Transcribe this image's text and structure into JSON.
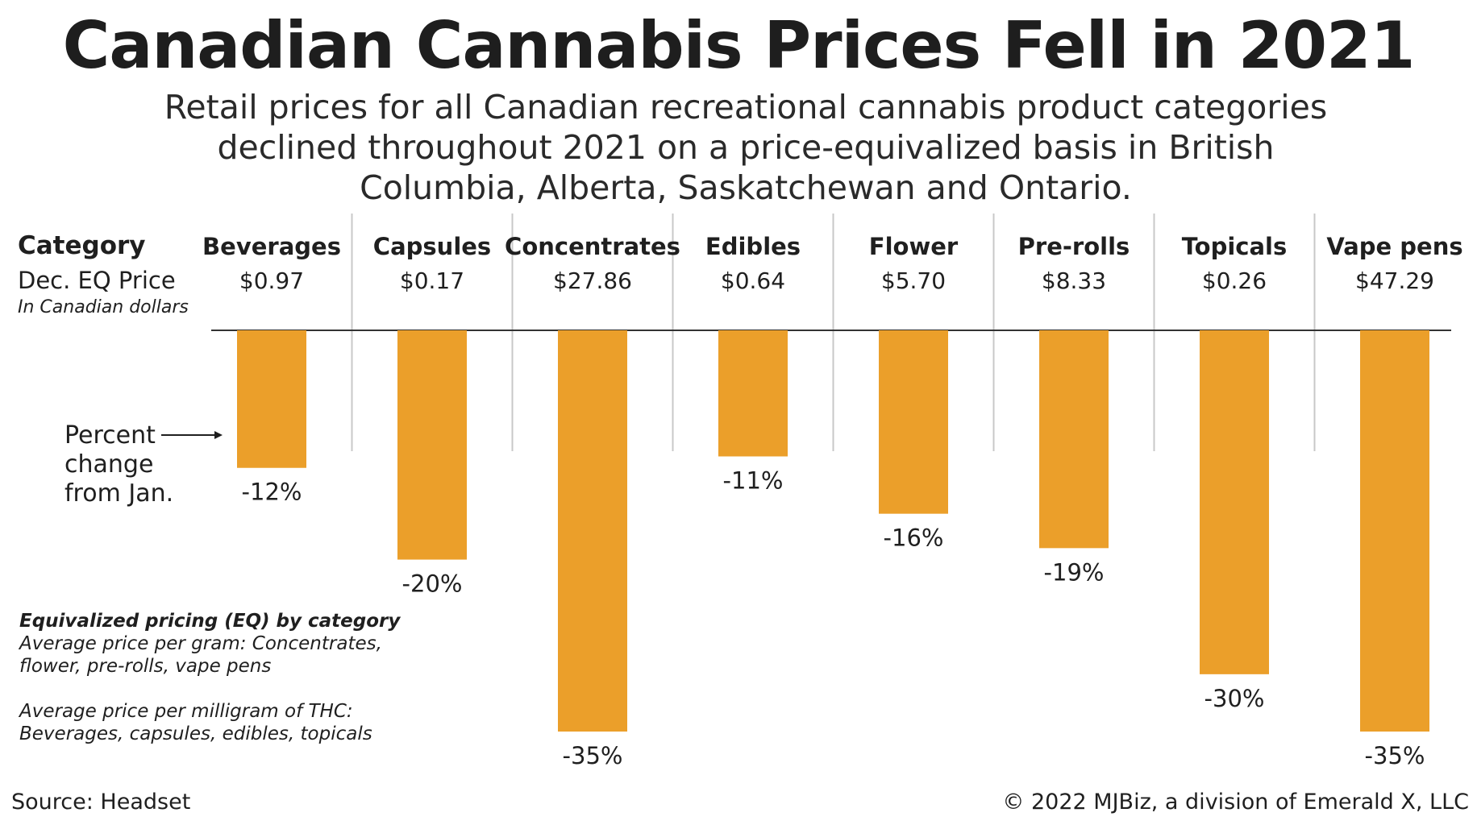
{
  "title": "Canadian Cannabis Prices Fell in 2021",
  "subtitle": "Retail prices for all Canadian recreational cannabis product categories declined throughout 2021 on a price-equivalized basis in British Columbia, Alberta, Saskatchewan and Ontario.",
  "legend": {
    "category_label": "Category",
    "price_label": "Dec. EQ Price",
    "currency_note": "In Canadian dollars",
    "percent_label_line1": "Percent",
    "percent_label_line2": "change",
    "percent_label_line3": "from Jan."
  },
  "note": {
    "heading": "Equivalized pricing (EQ) by category",
    "per_gram_line1": "Average price per gram: Concentrates,",
    "per_gram_line2": "flower, pre-rolls, vape pens",
    "per_mg_line1": "Average price per milligram of THC:",
    "per_mg_line2": "Beverages, capsules, edibles, topicals"
  },
  "source": "Source: Headset",
  "credit": "© 2022 MJBiz, a division of Emerald X, LLC",
  "colors": {
    "bar": "#EB9F2A",
    "divider": "#c8c8c8",
    "axis": "#333333"
  },
  "chart_data": {
    "type": "bar",
    "title": "Canadian Cannabis Prices Fell in 2021",
    "xlabel": "Category",
    "ylabel": "Percent change from Jan.",
    "ylim": [
      -35,
      0
    ],
    "categories": [
      "Beverages",
      "Capsules",
      "Concentrates",
      "Edibles",
      "Flower",
      "Pre-rolls",
      "Topicals",
      "Vape pens"
    ],
    "prices": [
      "$0.97",
      "$0.17",
      "$27.86",
      "$0.64",
      "$5.70",
      "$8.33",
      "$0.26",
      "$47.29"
    ],
    "values": [
      -12,
      -20,
      -35,
      -11,
      -16,
      -19,
      -30,
      -35
    ],
    "value_labels": [
      "-12%",
      "-20%",
      "-35%",
      "-11%",
      "-16%",
      "-19%",
      "-30%",
      "-35%"
    ]
  }
}
